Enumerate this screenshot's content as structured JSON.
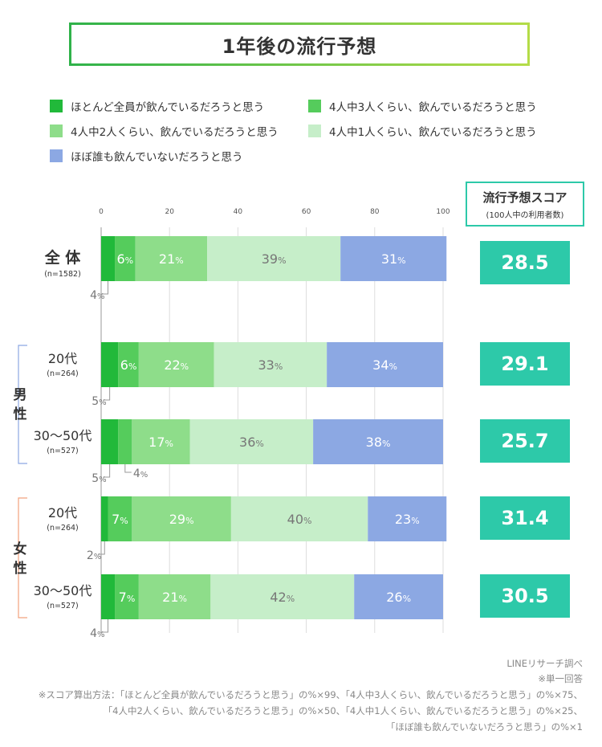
{
  "title": "1年後の流行予想",
  "legend": [
    {
      "label": "ほとんど全員が飲んでいるだろうと思う",
      "color": "#21b93a"
    },
    {
      "label": "4人中3人くらい、飲んでいるだろうと思う",
      "color": "#55cc5c"
    },
    {
      "label": "4人中2人くらい、飲んでいるだろうと思う",
      "color": "#8edd8a"
    },
    {
      "label": "4人中1人くらい、飲んでいるだろうと思う",
      "color": "#c6eec9"
    },
    {
      "label": "ほぼ誰も飲んでいないだろうと思う",
      "color": "#8ca8e3"
    }
  ],
  "score_header": {
    "title": "流行予想スコア",
    "subtitle": "(100人中の利用者数)"
  },
  "group_labels": {
    "male": [
      "男",
      "性"
    ],
    "female": [
      "女",
      "性"
    ]
  },
  "chart_data": {
    "type": "bar",
    "orientation": "horizontal",
    "stacked": true,
    "xlim": [
      0,
      100
    ],
    "x_ticks": [
      0,
      20,
      40,
      60,
      80,
      100
    ],
    "percent_suffix": "%",
    "categories": [
      {
        "label": "全 体",
        "n": "(n=1582)"
      },
      {
        "label": "20代",
        "n": "(n=264)"
      },
      {
        "label": "30～50代",
        "n": "(n=527)"
      },
      {
        "label": "20代",
        "n": "(n=264)"
      },
      {
        "label": "30～50代",
        "n": "(n=527)"
      }
    ],
    "series": [
      {
        "name": "ほとんど全員が飲んでいるだろうと思う",
        "color": "#21b93a",
        "values": [
          4,
          5,
          5,
          2,
          4
        ]
      },
      {
        "name": "4人中3人くらい、飲んでいるだろうと思う",
        "color": "#55cc5c",
        "values": [
          6,
          6,
          4,
          7,
          7
        ]
      },
      {
        "name": "4人中2人くらい、飲んでいるだろうと思う",
        "color": "#8edd8a",
        "values": [
          21,
          22,
          17,
          29,
          21
        ]
      },
      {
        "name": "4人中1人くらい、飲んでいるだろうと思う",
        "color": "#c6eec9",
        "values": [
          39,
          33,
          36,
          40,
          42
        ]
      },
      {
        "name": "ほぼ誰も飲んでいないだろうと思う",
        "color": "#8ca8e3",
        "values": [
          31,
          34,
          38,
          23,
          26
        ]
      }
    ],
    "label_colors": [
      "#ffffff",
      "#ffffff",
      "#ffffff",
      "#777777",
      "#ffffff"
    ],
    "scores": [
      "28.5",
      "29.1",
      "25.7",
      "31.4",
      "30.5"
    ]
  },
  "footer": {
    "source": "LINEリサーチ調べ",
    "note": "※単一回答",
    "method": [
      "※スコア算出方法：「ほとんど全員が飲んでいるだろうと思う」の%×99、「4人中3人くらい、飲んでいるだろうと思う」の%×75、",
      "「4人中2人くらい、飲んでいるだろうと思う」の%×50、「4人中1人くらい、飲んでいるだろうと思う」の%×25、",
      "「ほぼ誰も飲んでいないだろうと思う」の%×1"
    ]
  }
}
